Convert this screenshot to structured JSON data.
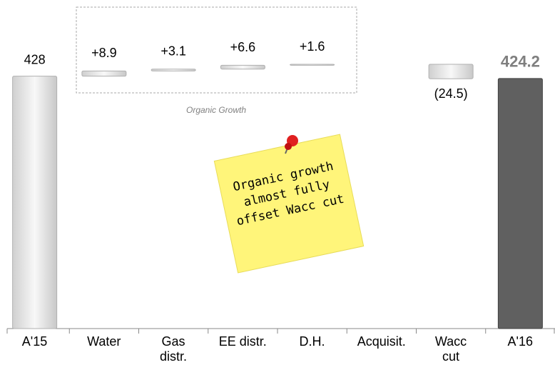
{
  "chart_data": {
    "type": "waterfall",
    "categories": [
      "A'15",
      "Water",
      "Gas\ndistr.",
      "EE distr.",
      "D.H.",
      "Acquisit.",
      "Wacc\ncut",
      "A'16"
    ],
    "values": [
      428,
      8.9,
      3.1,
      6.6,
      1.6,
      null,
      -24.5,
      424.2
    ],
    "value_labels": [
      "428",
      "+8.9",
      "+3.1",
      "+6.6",
      "+1.6",
      null,
      "(24.5)",
      "424.2"
    ],
    "colors": [
      "#e6e6e6",
      "#e6e6e6",
      "#e6e6e6",
      "#e6e6e6",
      "#e6e6e6",
      null,
      "#e6e6e6",
      "#606060"
    ],
    "annotations": [
      "Organic Growth",
      "Organic growth\nalmost fully\noffset Wacc cut"
    ]
  }
}
